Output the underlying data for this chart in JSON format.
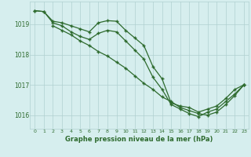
{
  "line1": {
    "x": [
      0,
      1,
      2,
      3,
      4,
      5,
      6,
      7,
      8,
      9,
      10,
      11,
      12,
      13,
      14,
      15,
      16,
      17,
      18,
      19,
      20,
      21,
      22,
      23
    ],
    "y": [
      1019.45,
      1019.42,
      1019.1,
      1019.05,
      1018.95,
      1018.85,
      1018.75,
      1019.05,
      1019.12,
      1019.1,
      1018.8,
      1018.55,
      1018.3,
      1017.6,
      1017.2,
      1016.4,
      1016.3,
      1016.25,
      1016.1,
      1016.2,
      1016.3,
      1016.55,
      1016.85,
      1017.0
    ]
  },
  "line2": {
    "x": [
      0,
      1,
      2,
      3,
      4,
      5,
      6,
      7,
      8,
      9,
      10,
      11,
      12,
      13,
      14,
      15,
      16,
      17,
      18,
      19,
      20,
      21,
      22,
      23
    ],
    "y": [
      1019.45,
      1019.42,
      1019.05,
      1018.95,
      1018.75,
      1018.6,
      1018.5,
      1018.7,
      1018.8,
      1018.75,
      1018.45,
      1018.15,
      1017.85,
      1017.25,
      1016.85,
      1016.35,
      1016.2,
      1016.05,
      1015.95,
      1016.1,
      1016.2,
      1016.45,
      1016.7,
      1017.0
    ]
  },
  "line3": {
    "x": [
      2,
      3,
      4,
      5,
      6,
      7,
      8,
      9,
      10,
      11,
      12,
      13,
      14,
      15,
      16,
      17,
      18,
      19,
      20,
      21,
      22,
      23
    ],
    "y": [
      1018.95,
      1018.8,
      1018.65,
      1018.45,
      1018.3,
      1018.1,
      1017.95,
      1017.75,
      1017.55,
      1017.3,
      1017.05,
      1016.85,
      1016.6,
      1016.45,
      1016.25,
      1016.15,
      1016.05,
      1016.0,
      1016.1,
      1016.35,
      1016.65,
      1017.0
    ]
  },
  "bg_color": "#d6eeee",
  "grid_color": "#b0d0d0",
  "line_color": "#2d6a2d",
  "xlabel": "Graphe pression niveau de la mer (hPa)",
  "xlim": [
    -0.5,
    23.5
  ],
  "ylim": [
    1015.55,
    1019.75
  ],
  "yticks": [
    1016,
    1017,
    1018,
    1019
  ],
  "xticks": [
    0,
    1,
    2,
    3,
    4,
    5,
    6,
    7,
    8,
    9,
    10,
    11,
    12,
    13,
    14,
    15,
    16,
    17,
    18,
    19,
    20,
    21,
    22,
    23
  ],
  "marker": "+"
}
